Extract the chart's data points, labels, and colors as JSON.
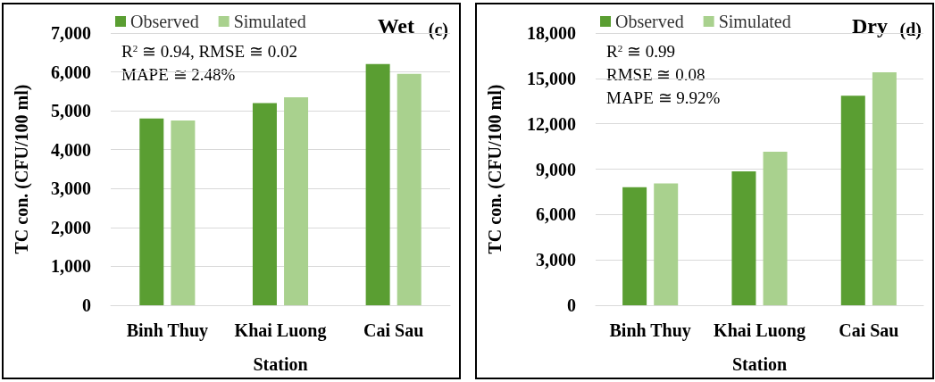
{
  "chart_data": [
    {
      "type": "bar",
      "title": "Wet",
      "subtitle": "(c)",
      "xlabel": "Station",
      "ylabel": "TC con. (CFU/100 ml)",
      "categories": [
        "Binh Thuy",
        "Khai Luong",
        "Cai Sau"
      ],
      "series": [
        {
          "name": "Observed",
          "color": "#5a9e32",
          "values": [
            4800,
            5200,
            6200
          ]
        },
        {
          "name": "Simulated",
          "color": "#a9d18e",
          "values": [
            4750,
            5350,
            5950
          ]
        }
      ],
      "ylim": [
        0,
        7000
      ],
      "yticks": [
        0,
        {
          "value": 1000,
          "label": "1,000"
        },
        {
          "value": 2000,
          "label": "2,000"
        },
        {
          "value": 3000,
          "label": "3,000"
        },
        {
          "value": 4000,
          "label": "4,000"
        },
        {
          "value": 5000,
          "label": "5,000"
        },
        {
          "value": 6000,
          "label": "6,000"
        },
        {
          "value": 7000,
          "label": "7,000"
        }
      ],
      "annotations": [
        "R$^{2}$ ≅ 0.94, RMSE ≅ 0.02",
        "MAPE ≅ 2.48%"
      ],
      "grid": "y",
      "legend": "top left"
    },
    {
      "type": "bar",
      "title": "Dry",
      "subtitle": "(d)",
      "xlabel": "Station",
      "ylabel": "TC con. (CFU/100 ml)",
      "categories": [
        "Binh Thuy",
        "Khai Luong",
        "Cai Sau"
      ],
      "series": [
        {
          "name": "Observed",
          "color": "#5a9e32",
          "values": [
            7800,
            8850,
            13850
          ]
        },
        {
          "name": "Simulated",
          "color": "#a9d18e",
          "values": [
            8050,
            10150,
            15400
          ]
        }
      ],
      "ylim": [
        0,
        18000
      ],
      "yticks": [
        0,
        {
          "value": 3000,
          "label": "3,000"
        },
        {
          "value": 6000,
          "label": "6,000"
        },
        {
          "value": 9000,
          "label": "9,000"
        },
        {
          "value": 12000,
          "label": "12,000"
        },
        {
          "value": 15000,
          "label": "15,000"
        },
        {
          "value": 18000,
          "label": "18,000"
        }
      ],
      "annotations": [
        "R$^{2}$ ≅ 0.99",
        "RMSE ≅ 0.08",
        "MAPE ≅ 9.92%"
      ],
      "grid": "y",
      "legend": "top left"
    }
  ]
}
